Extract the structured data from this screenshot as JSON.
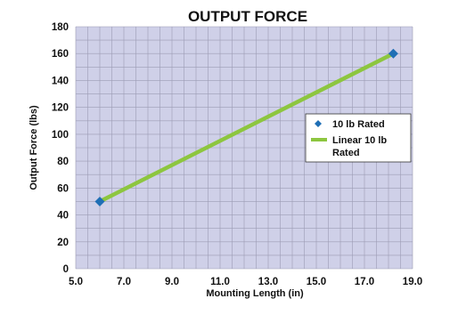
{
  "chart_data": {
    "type": "line",
    "title": "OUTPUT FORCE",
    "xlabel": "Mounting Length (in)",
    "ylabel": "Output Force (lbs)",
    "xlim": [
      5.0,
      19.0
    ],
    "ylim": [
      0,
      180
    ],
    "xticks": [
      "5.0",
      "7.0",
      "9.0",
      "11.0",
      "13.0",
      "15.0",
      "17.0",
      "19.0"
    ],
    "yticks": [
      "0",
      "20",
      "40",
      "60",
      "80",
      "100",
      "120",
      "140",
      "160",
      "180"
    ],
    "grid": true,
    "legend_position": "right",
    "colors": {
      "plot_bg": "#cfd0e8",
      "grid": "#9c9cb4",
      "marker": "#1f6fb5",
      "line": "#8dc63f"
    },
    "series": [
      {
        "name": "10 lb Rated",
        "kind": "markers",
        "marker": "diamond",
        "x": [
          6.0,
          18.2
        ],
        "y": [
          50,
          160
        ]
      },
      {
        "name": "Linear 10 lb Rated",
        "legend_lines": [
          "Linear 10 lb",
          "Rated"
        ],
        "kind": "line",
        "x": [
          6.0,
          18.2
        ],
        "y": [
          50,
          160
        ]
      }
    ]
  }
}
